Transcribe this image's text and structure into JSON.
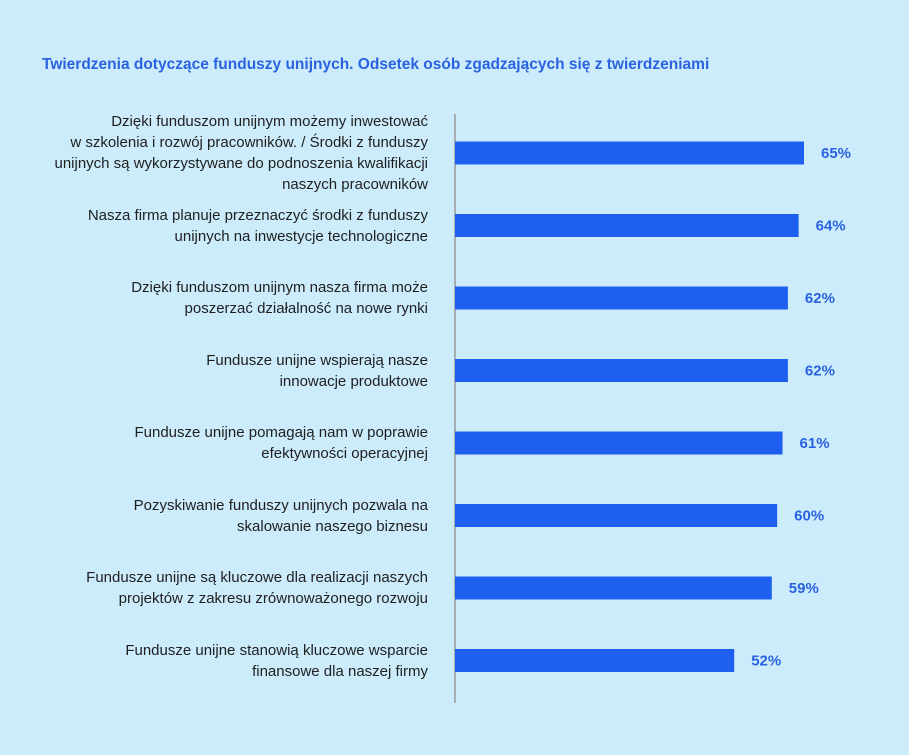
{
  "chart_data": {
    "type": "bar",
    "orientation": "horizontal",
    "title": "Twierdzenia dotyczące funduszy unijnych. Odsetek osób zgadzających się z twierdzeniami",
    "categories": [
      "Dzięki funduszom unijnym możemy inwestować w szkolenia i rozwój pracowników. / Środki z funduszy unijnych są wykorzystywane do podnoszenia kwalifikacji naszych pracowników",
      "Nasza firma planuje przeznaczyć środki z funduszy unijnych na inwestycje technologiczne",
      "Dzięki funduszom unijnym nasza firma może poszerzać działalność na nowe rynki",
      "Fundusze unijne wspierają nasze innowacje produktowe",
      "Fundusze unijne pomagają nam w poprawie efektywności operacyjnej",
      "Pozyskiwanie funduszy unijnych pozwala na skalowanie naszego biznesu",
      "Fundusze unijne są kluczowe dla realizacji naszych projektów z zakresu zrównoważonego rozwoju",
      "Fundusze unijne stanowią kluczowe wsparcie finansowe dla naszej firmy"
    ],
    "category_lines": [
      [
        "Dzięki funduszom unijnym możemy inwestować",
        "w szkolenia i rozwój pracowników. / Środki z funduszy",
        "unijnych są wykorzystywane do podnoszenia kwalifikacji",
        "naszych pracowników"
      ],
      [
        "Nasza firma planuje przeznaczyć środki z funduszy",
        "unijnych na inwestycje technologiczne"
      ],
      [
        "Dzięki funduszom unijnym nasza firma może",
        "poszerzać działalność na nowe rynki"
      ],
      [
        "Fundusze unijne wspierają nasze",
        "innowacje produktowe"
      ],
      [
        "Fundusze unijne pomagają nam w poprawie",
        "efektywności operacyjnej"
      ],
      [
        "Pozyskiwanie funduszy unijnych pozwala na",
        "skalowanie naszego biznesu"
      ],
      [
        "Fundusze unijne są kluczowe dla realizacji naszych",
        "projektów z zakresu zrównoważonego rozwoju"
      ],
      [
        "Fundusze unijne stanowią kluczowe wsparcie",
        "finansowe dla naszej firmy"
      ]
    ],
    "values": [
      65,
      64,
      62,
      62,
      61,
      60,
      59,
      52
    ],
    "value_labels": [
      "65%",
      "64%",
      "62%",
      "62%",
      "61%",
      "60%",
      "59%",
      "52%"
    ],
    "unit": "%",
    "xlim": [
      0,
      100
    ],
    "grid": false,
    "legend": "none",
    "colors": {
      "background": "#ccecfb",
      "bar": "#1f5ff0",
      "title": "#2a62e0",
      "value_label": "#2a62e0",
      "axis": "#9a9a9a",
      "label_text": "#1f1f1f"
    }
  }
}
